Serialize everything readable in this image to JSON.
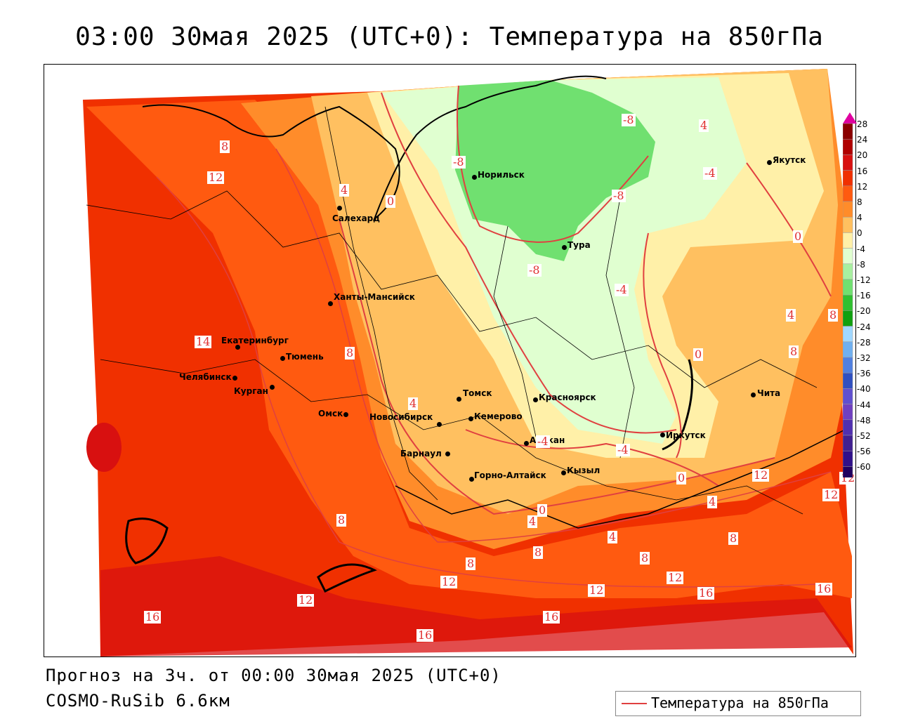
{
  "title": "03:00 30мая 2025 (UTC+0): Температура на 850гПа",
  "footer": {
    "forecast": "Прогноз на 3ч. от 00:00 30мая 2025 (UTC+0)",
    "model": "COSMO-RuSib 6.6км"
  },
  "legend": {
    "label": "Температура на 850гПа",
    "line_color": "#e04040"
  },
  "colorbar": {
    "ticks": [
      "28",
      "24",
      "20",
      "16",
      "12",
      "8",
      "4",
      "0",
      "-4",
      "-8",
      "-12",
      "-16",
      "-20",
      "-24",
      "-28",
      "-32",
      "-36",
      "-40",
      "-44",
      "-48",
      "-52",
      "-56",
      "-60"
    ],
    "colors": [
      "#8b0000",
      "#b00000",
      "#d81010",
      "#f03000",
      "#ff5a10",
      "#ff8c2a",
      "#ffc060",
      "#fff0a8",
      "#e0ffd0",
      "#a8f0a0",
      "#70e070",
      "#30c030",
      "#10a010",
      "#a0d8ff",
      "#70b0f0",
      "#5080e0",
      "#3050c0",
      "#6050d0",
      "#7040c0",
      "#5030b0",
      "#402090",
      "#30108a",
      "#200060"
    ],
    "top_arrow_color": "#e000a0"
  },
  "cities": [
    {
      "name": "Норильск"
    },
    {
      "name": "Якутск"
    },
    {
      "name": "Салехард"
    },
    {
      "name": "Тура"
    },
    {
      "name": "Ханты-Мансийск"
    },
    {
      "name": "Екатеринбург"
    },
    {
      "name": "Тюмень"
    },
    {
      "name": "Челябинск"
    },
    {
      "name": "Курган"
    },
    {
      "name": "Омск"
    },
    {
      "name": "Новосибирск"
    },
    {
      "name": "Томск"
    },
    {
      "name": "Кемерово"
    },
    {
      "name": "Красноярск"
    },
    {
      "name": "Абакан"
    },
    {
      "name": "Барнаул"
    },
    {
      "name": "Горно-Алтайск"
    },
    {
      "name": "Кызыл"
    },
    {
      "name": "Иркутск"
    },
    {
      "name": "Чита"
    }
  ],
  "isotherm_labels": [
    "8",
    "12",
    "4",
    "0",
    "-8",
    "-8",
    "-8",
    "-8",
    "4",
    "-4",
    "0",
    "-4",
    "4",
    "8",
    "8",
    "0",
    "12",
    "4",
    "0",
    "-4",
    "12",
    "8",
    "8",
    "8",
    "0",
    "4",
    "4",
    "8",
    "12",
    "12",
    "16",
    "16",
    "16",
    "12",
    "16",
    "12",
    "12",
    "16",
    "8",
    "-4",
    "4",
    "14",
    "8"
  ]
}
